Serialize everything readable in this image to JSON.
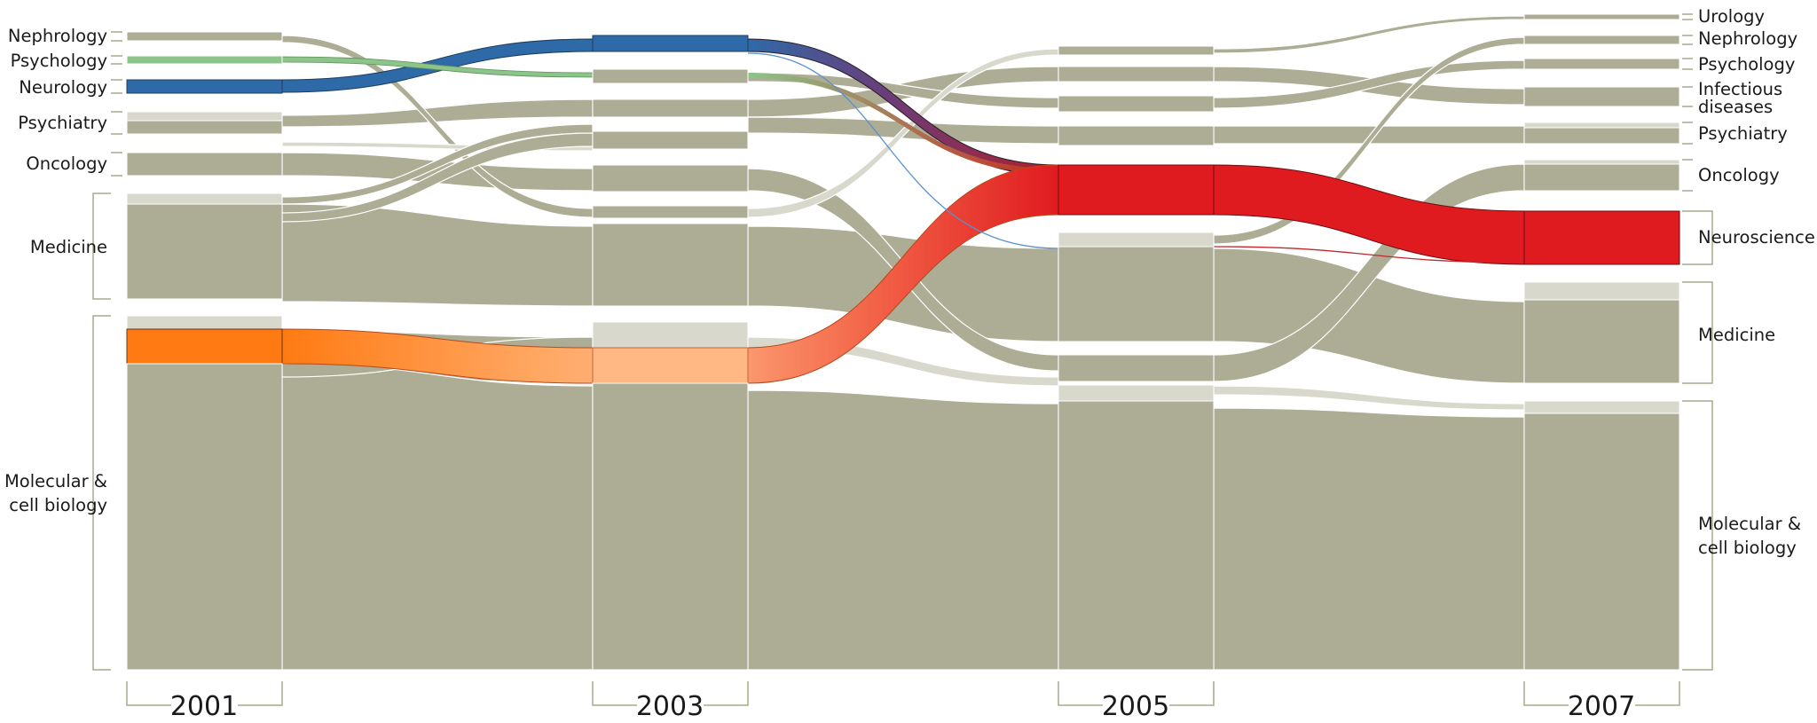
{
  "years": [
    "2001",
    "2003",
    "2005",
    "2007"
  ],
  "labels_2001": {
    "nephrology": "Nephrology",
    "psychology": "Psychology",
    "neurology": "Neurology",
    "psychiatry": "Psychiatry",
    "oncology": "Oncology",
    "medicine": "Medicine",
    "molbio_line1": "Molecular &",
    "molbio_line2": "cell biology"
  },
  "labels_2007": {
    "urology": "Urology",
    "nephrology": "Nephrology",
    "psychology": "Psychology",
    "infectious_line1": "Infectious",
    "infectious_line2": "diseases",
    "psychiatry": "Psychiatry",
    "oncology": "Oncology",
    "neuroscience": "Neuroscience",
    "medicine": "Medicine",
    "molbio_line1": "Molecular &",
    "molbio_line2": "cell biology"
  },
  "colors": {
    "block": "#acad94",
    "block_light": "#d8d9cc",
    "neurology_blue": "#2f6aa8",
    "psychology_green": "#8cc48a",
    "medicine_orange": "#ff7a12",
    "neuroscience_red": "#e01b1f",
    "bracket": "#a9a98f"
  }
}
